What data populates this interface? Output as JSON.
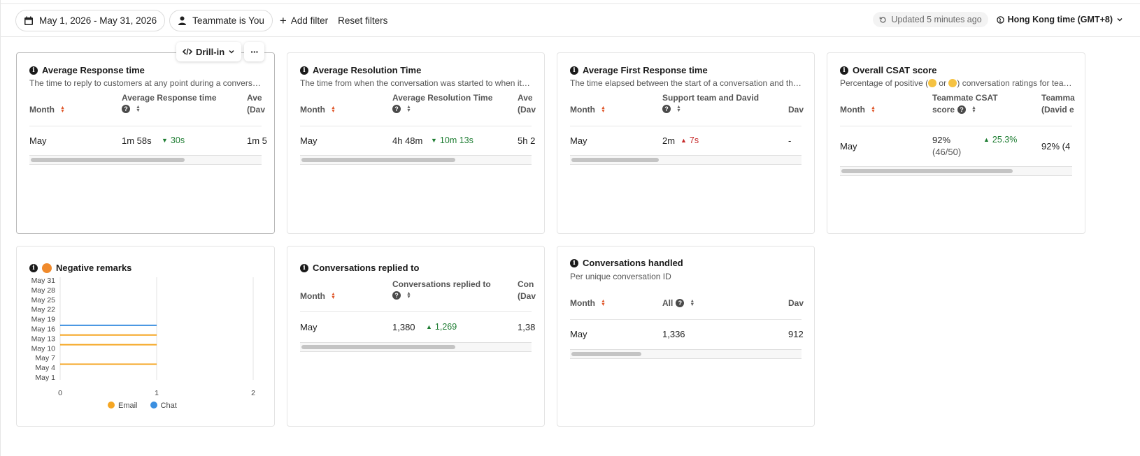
{
  "filters": {
    "date_range": "May 1, 2026 - May 31, 2026",
    "teammate": "Teammate is You",
    "add_filter": "Add filter",
    "reset_filters": "Reset filters",
    "updated": "Updated 5 minutes ago",
    "timezone": "Hong Kong time (GMT+8)"
  },
  "drill": {
    "label": "Drill-in",
    "more": "···"
  },
  "cards": {
    "avg_response": {
      "title": "Average Response time",
      "desc": "The time to reply to customers at any point during a conversation",
      "col_month": "Month",
      "col_metric": "Average Response time",
      "col_extra": "Ave",
      "col_extra2": "(Dav",
      "row": {
        "month": "May",
        "value": "1m 58s",
        "delta": "30s",
        "extra": "1m 5"
      }
    },
    "avg_resolution": {
      "title": "Average Resolution Time",
      "desc": "The time from when the conversation was started to when it was resolved",
      "col_month": "Month",
      "col_metric": "Average Resolution Time",
      "col_extra": "Ave",
      "col_extra2": "(Dav",
      "row": {
        "month": "May",
        "value": "4h 48m",
        "delta": "10m 13s",
        "extra": "5h 2"
      }
    },
    "avg_first_response": {
      "title": "Average First Response time",
      "desc": "The time elapsed between the start of a conversation and the first response",
      "col_month": "Month",
      "col_metric": "Support team and David",
      "col_extra": "Dav",
      "row": {
        "month": "May",
        "value": "2m",
        "delta": "7s",
        "extra": "-"
      }
    },
    "csat": {
      "title": "Overall CSAT score",
      "desc_pre": "Percentage of positive (",
      "desc_mid": " or ",
      "desc_post": ") conversation ratings for teammates",
      "col_month": "Month",
      "col_metric_1": "Teammate CSAT",
      "col_metric_2": "score",
      "col_extra": "Teamma",
      "col_extra2": "(David e",
      "row": {
        "month": "May",
        "value": "92%",
        "sub": "(46/50)",
        "delta": "25.3%",
        "extra": "92% (4"
      }
    },
    "negative": {
      "title": "Negative remarks",
      "legend_email": "Email",
      "legend_chat": "Chat"
    },
    "replied": {
      "title": "Conversations replied to",
      "col_month": "Month",
      "col_metric": "Conversations replied to",
      "col_extra": "Con",
      "col_extra2": "(Dav",
      "row": {
        "month": "May",
        "value": "1,380",
        "delta": "1,269",
        "extra": "1,38"
      }
    },
    "handled": {
      "title": "Conversations handled",
      "desc": "Per unique conversation ID",
      "col_month": "Month",
      "col_metric": "All",
      "col_extra": "Dav",
      "row": {
        "month": "May",
        "value": "1,336",
        "extra": "912"
      }
    }
  },
  "chart_data": {
    "type": "bar",
    "orientation": "horizontal",
    "categories": [
      "May 31",
      "May 28",
      "May 25",
      "May 22",
      "May 19",
      "May 16",
      "May 13",
      "May 10",
      "May 7",
      "May 4",
      "May 1"
    ],
    "x_ticks": [
      "0",
      "1",
      "2"
    ],
    "xlim": [
      0,
      2
    ],
    "series": [
      {
        "name": "Email",
        "color": "#f5a623",
        "points": [
          {
            "y": "May 14",
            "x": 1
          },
          {
            "y": "May 11",
            "x": 1
          },
          {
            "y": "May 5",
            "x": 1
          }
        ]
      },
      {
        "name": "Chat",
        "color": "#3b8fe0",
        "points": [
          {
            "y": "May 17",
            "x": 1
          }
        ]
      }
    ]
  }
}
